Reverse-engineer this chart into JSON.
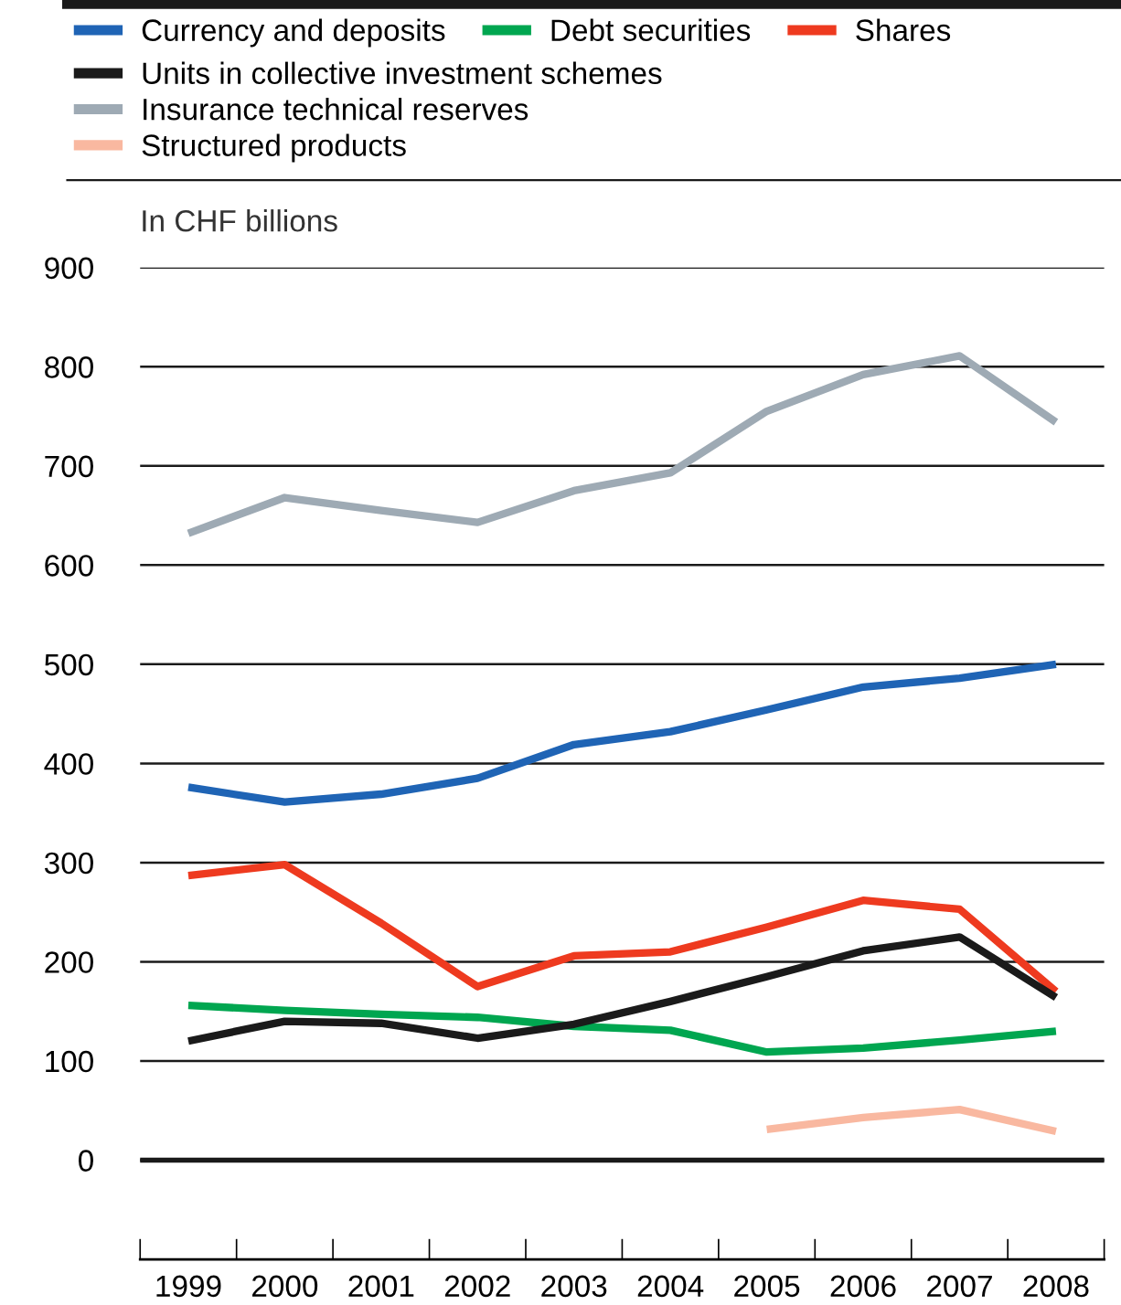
{
  "chart_data": {
    "type": "line",
    "ylabel": "In CHF billions",
    "categories": [
      "1999",
      "2000",
      "2001",
      "2002",
      "2003",
      "2004",
      "2005",
      "2006",
      "2007",
      "2008"
    ],
    "series": [
      {
        "name": "Currency and deposits",
        "color": "#1f64b5",
        "values": [
          376,
          361,
          369,
          385,
          419,
          432,
          454,
          477,
          486,
          500
        ]
      },
      {
        "name": "Debt securities",
        "color": "#00a650",
        "values": [
          156,
          151,
          147,
          144,
          135,
          131,
          109,
          113,
          121,
          130
        ]
      },
      {
        "name": "Shares",
        "color": "#ee3a1f",
        "values": [
          287,
          298,
          239,
          175,
          206,
          210,
          235,
          262,
          253,
          170
        ]
      },
      {
        "name": "Units in collective investment schemes",
        "color": "#1a1a1a",
        "values": [
          120,
          140,
          138,
          123,
          137,
          160,
          185,
          211,
          225,
          164
        ]
      },
      {
        "name": "Insurance technical reserves",
        "color": "#9eaab4",
        "values": [
          632,
          668,
          655,
          643,
          675,
          693,
          755,
          792,
          811,
          744
        ]
      },
      {
        "name": "Structured products",
        "color": "#f9b8a0",
        "values": [
          null,
          null,
          null,
          null,
          null,
          null,
          31,
          43,
          51,
          29
        ]
      }
    ],
    "ylim": [
      -100,
      900
    ],
    "yticks": [
      0,
      100,
      200,
      300,
      400,
      500,
      600,
      700,
      800,
      900
    ],
    "ref_lines": [
      {
        "axis": "y",
        "value": 0,
        "color": "#1a1a1a"
      }
    ],
    "grid": "y",
    "legend": "top",
    "marker": "none",
    "line_style": "solid"
  }
}
